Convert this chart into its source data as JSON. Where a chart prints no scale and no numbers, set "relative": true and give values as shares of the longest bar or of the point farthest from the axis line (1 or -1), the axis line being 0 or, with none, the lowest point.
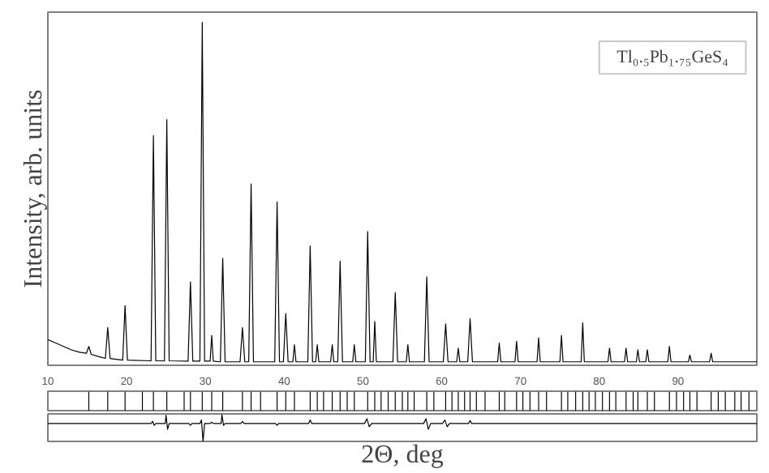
{
  "chart_data": [
    {
      "type": "line",
      "relative": true,
      "ylabel": "Intensity, arb. units",
      "annotations": [
        "Tl₀.₅Pb₁.₇₅GeS₄"
      ],
      "xlim": [
        10,
        100
      ],
      "xticks": [
        10,
        20,
        30,
        40,
        50,
        60,
        70,
        80,
        90
      ],
      "tick_labels": "x",
      "color": "#000000",
      "x": [
        10,
        11,
        12,
        13,
        14,
        14.9,
        15.2,
        15.5,
        16.5,
        17.3,
        17.6,
        17.9,
        19.5,
        19.8,
        20.1,
        23.1,
        23.4,
        23.7,
        24.8,
        25.1,
        25.4,
        27.8,
        28.1,
        28.4,
        29.3,
        29.6,
        29.9,
        30.6,
        30.8,
        31.0,
        31.9,
        32.2,
        32.5,
        34.4,
        34.7,
        35.0,
        35.5,
        35.8,
        36.1,
        38.8,
        39.1,
        39.4,
        39.9,
        40.2,
        40.5,
        41.1,
        41.3,
        41.5,
        43.0,
        43.3,
        43.6,
        44.0,
        44.2,
        44.4,
        45.9,
        46.1,
        46.3,
        46.8,
        47.1,
        47.4,
        48.7,
        48.9,
        49.1,
        50.3,
        50.6,
        50.9,
        51.3,
        51.5,
        51.7,
        53.8,
        54.1,
        54.4,
        55.5,
        55.7,
        55.9,
        57.8,
        58.1,
        58.4,
        60.2,
        60.5,
        60.8,
        61.9,
        62.1,
        62.3,
        63.3,
        63.6,
        63.9,
        67.1,
        67.3,
        67.5,
        69.3,
        69.5,
        69.7,
        72.1,
        72.3,
        72.5,
        75.0,
        75.2,
        75.4,
        77.7,
        77.9,
        78.1,
        81.1,
        81.3,
        81.5,
        83.2,
        83.4,
        83.6,
        84.7,
        84.9,
        85.1,
        85.9,
        86.1,
        86.3,
        88.7,
        88.9,
        89.1,
        91.3,
        91.5,
        91.7,
        94.0,
        94.2,
        94.4,
        99.5,
        100
      ],
      "values": [
        0.075,
        0.065,
        0.055,
        0.045,
        0.038,
        0.035,
        0.055,
        0.032,
        0.025,
        0.02,
        0.11,
        0.02,
        0.015,
        0.174,
        0.015,
        0.013,
        0.67,
        0.013,
        0.013,
        0.717,
        0.013,
        0.012,
        0.243,
        0.012,
        0.012,
        1.0,
        0.012,
        0.012,
        0.087,
        0.012,
        0.01,
        0.312,
        0.01,
        0.01,
        0.11,
        0.01,
        0.01,
        0.529,
        0.01,
        0.01,
        0.477,
        0.01,
        0.01,
        0.151,
        0.01,
        0.01,
        0.06,
        0.01,
        0.01,
        0.348,
        0.01,
        0.01,
        0.06,
        0.01,
        0.01,
        0.06,
        0.01,
        0.01,
        0.304,
        0.01,
        0.01,
        0.06,
        0.01,
        0.01,
        0.39,
        0.01,
        0.01,
        0.128,
        0.01,
        0.01,
        0.212,
        0.01,
        0.01,
        0.06,
        0.01,
        0.01,
        0.258,
        0.01,
        0.01,
        0.121,
        0.01,
        0.01,
        0.05,
        0.01,
        0.01,
        0.136,
        0.01,
        0.01,
        0.065,
        0.01,
        0.01,
        0.07,
        0.01,
        0.01,
        0.08,
        0.01,
        0.01,
        0.087,
        0.01,
        0.01,
        0.124,
        0.01,
        0.01,
        0.05,
        0.01,
        0.01,
        0.05,
        0.01,
        0.01,
        0.045,
        0.01,
        0.01,
        0.045,
        0.01,
        0.01,
        0.055,
        0.01,
        0.01,
        0.03,
        0.01,
        0.01,
        0.035,
        0.01,
        0.01,
        0.01
      ]
    },
    {
      "type": "bar",
      "relative": true,
      "xlim": [
        10,
        100
      ],
      "tick_labels": false,
      "color": "#000000",
      "x": [
        15.2,
        17.6,
        19.8,
        22.0,
        23.4,
        25.1,
        27.3,
        28.1,
        29.6,
        30.8,
        32.2,
        34.7,
        35.8,
        37.0,
        39.1,
        40.2,
        41.3,
        43.3,
        44.2,
        45.0,
        46.1,
        47.1,
        48.0,
        48.9,
        50.6,
        51.5,
        52.3,
        53.2,
        54.1,
        55.0,
        55.7,
        56.5,
        58.1,
        59.0,
        60.5,
        61.3,
        62.1,
        62.9,
        63.6,
        64.4,
        65.5,
        67.3,
        68.0,
        69.5,
        70.3,
        71.2,
        72.3,
        73.3,
        75.2,
        76.0,
        77.0,
        77.9,
        78.7,
        79.5,
        80.4,
        81.3,
        82.1,
        83.4,
        84.3,
        84.9,
        86.1,
        87.0,
        88.9,
        89.8,
        90.7,
        91.5,
        92.4,
        94.2,
        95.1,
        96.0,
        97.2,
        98.0,
        99.0
      ],
      "values": [
        1,
        1,
        1,
        1,
        1,
        1,
        1,
        1,
        1,
        1,
        1,
        1,
        1,
        1,
        1,
        1,
        1,
        1,
        1,
        1,
        1,
        1,
        1,
        1,
        1,
        1,
        1,
        1,
        1,
        1,
        1,
        1,
        1,
        1,
        1,
        1,
        1,
        1,
        1,
        1,
        1,
        1,
        1,
        1,
        1,
        1,
        1,
        1,
        1,
        1,
        1,
        1,
        1,
        1,
        1,
        1,
        1,
        1,
        1,
        1,
        1,
        1,
        1,
        1,
        1,
        1,
        1,
        1,
        1,
        1,
        1,
        1,
        1
      ]
    },
    {
      "type": "line",
      "relative": true,
      "xlim": [
        10,
        100
      ],
      "tick_labels": false,
      "xlabel": "2Θ, deg",
      "color": "#000000",
      "x": [
        10,
        23.1,
        23.3,
        23.5,
        23.7,
        24.9,
        25.0,
        25.2,
        25.4,
        27.9,
        28.1,
        28.3,
        29.3,
        29.5,
        29.7,
        29.9,
        30.6,
        30.8,
        31.0,
        32.0,
        32.1,
        32.3,
        32.5,
        34.5,
        34.7,
        34.9,
        38.9,
        39.1,
        39.3,
        43.1,
        43.3,
        43.5,
        50.2,
        50.5,
        50.8,
        51.1,
        57.7,
        58.0,
        58.3,
        58.6,
        60.1,
        60.4,
        60.7,
        61.0,
        63.4,
        63.6,
        63.8,
        100
      ],
      "values": [
        0.67,
        0.67,
        0.75,
        0.6,
        0.67,
        0.67,
        0.98,
        0.45,
        0.67,
        0.67,
        0.6,
        0.67,
        0.67,
        0.8,
        0.0,
        0.67,
        0.67,
        0.72,
        0.67,
        0.67,
        1.0,
        0.6,
        0.67,
        0.67,
        0.75,
        0.67,
        0.67,
        0.6,
        0.67,
        0.67,
        0.8,
        0.67,
        0.67,
        0.85,
        0.55,
        0.67,
        0.67,
        0.85,
        0.45,
        0.67,
        0.67,
        0.8,
        0.55,
        0.67,
        0.67,
        0.78,
        0.67,
        0.67
      ]
    }
  ]
}
